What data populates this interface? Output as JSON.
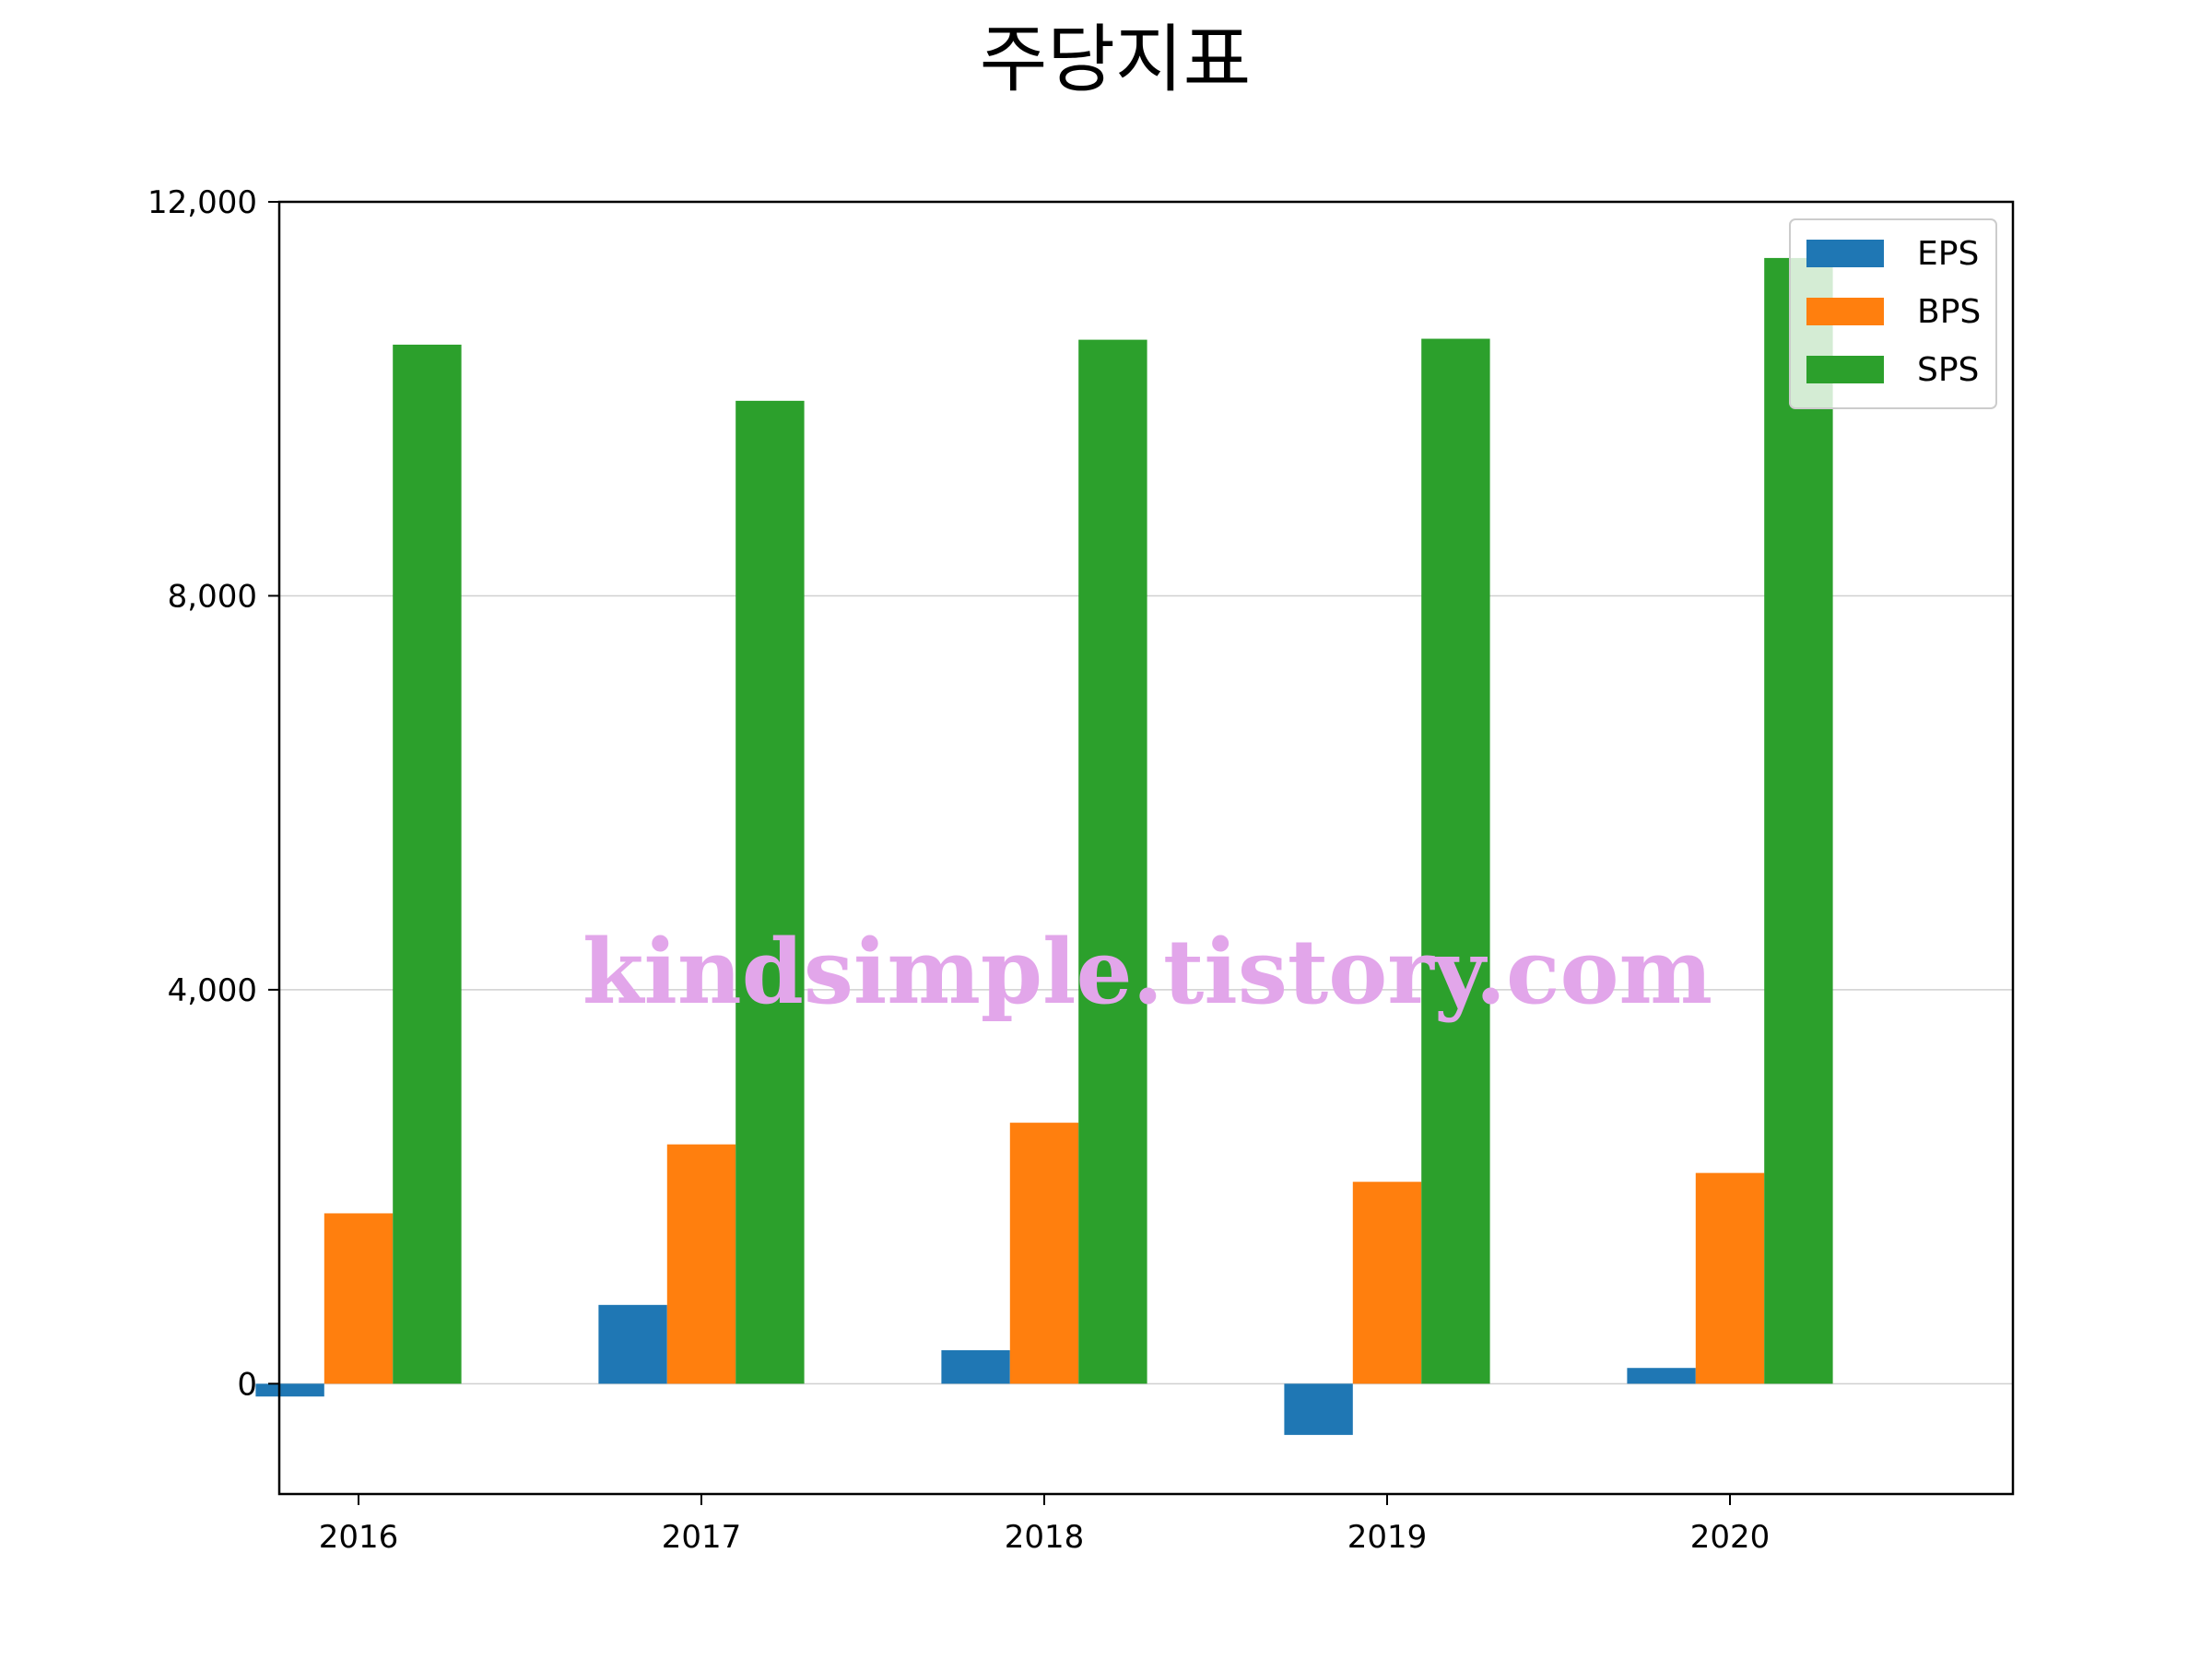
{
  "chart_data": {
    "type": "bar",
    "title": "주당지표",
    "xlabel": "",
    "ylabel": "",
    "categories": [
      "2016",
      "2017",
      "2018",
      "2019",
      "2020"
    ],
    "series": [
      {
        "name": "EPS",
        "color": "#1f77b4",
        "values": [
          -130,
          800,
          340,
          -520,
          160
        ]
      },
      {
        "name": "BPS",
        "color": "#ff7f0e",
        "values": [
          1730,
          2430,
          2650,
          2050,
          2140
        ]
      },
      {
        "name": "SPS",
        "color": "#2ca02c",
        "values": [
          10550,
          9980,
          10600,
          10610,
          11430
        ]
      }
    ],
    "ylim": [
      -1120,
      12000
    ],
    "yticks": [
      0,
      4000,
      8000,
      12000
    ],
    "ytick_labels": [
      "0",
      "4,000",
      "8,000",
      "12,000"
    ],
    "grid": "horizontal",
    "legend_position": "top-right",
    "watermark": "kindsimple.tistory.com"
  }
}
